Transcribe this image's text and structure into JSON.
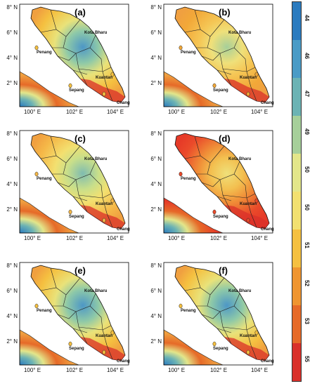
{
  "panels": [
    {
      "label": "(a)",
      "variant": "blue"
    },
    {
      "label": "(b)",
      "variant": "orange"
    },
    {
      "label": "(c)",
      "variant": "yellow"
    },
    {
      "label": "(d)",
      "variant": "red"
    },
    {
      "label": "(e)",
      "variant": "blue"
    },
    {
      "label": "(f)",
      "variant": "blue"
    }
  ],
  "y_ticks": [
    "8° N",
    "6° N",
    "4° N",
    "2° N"
  ],
  "x_ticks": [
    "100° E",
    "102° E",
    "104° E"
  ],
  "cities": [
    "Kota Bharu",
    "Penang",
    "Kuantan",
    "Sepang",
    "Changi"
  ],
  "colorbar": {
    "labels": [
      "44",
      "46",
      "47",
      "49",
      "50",
      "50",
      "51",
      "52",
      "53",
      "55"
    ],
    "colors": [
      "#2b7bbf",
      "#4a9bc6",
      "#6cb3b4",
      "#a6cf9a",
      "#e3e68a",
      "#f2e070",
      "#f5c040",
      "#ef9530",
      "#e66a28",
      "#d9302a"
    ]
  }
}
